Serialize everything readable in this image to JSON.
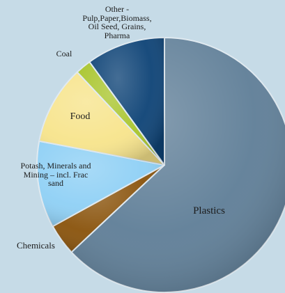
{
  "chart_data": {
    "type": "pie",
    "title": "",
    "slices": [
      {
        "label": "Plastics",
        "value": 63.0,
        "color": "#607f98"
      },
      {
        "label": "Chemicals",
        "value": 4.0,
        "color": "#8a540d"
      },
      {
        "label": "Potash, Minerals and Mining – incl. Frac sand",
        "value": 11.0,
        "color": "#8fd0f5"
      },
      {
        "label": "Food",
        "value": 10.0,
        "color": "#f7e48c"
      },
      {
        "label": "Coal",
        "value": 2.0,
        "color": "#a9c52d"
      },
      {
        "label": "Other - Pulp,Paper,Biomass, Oil Seed, Grains, Pharma",
        "value": 10.0,
        "color": "#0f4477"
      }
    ],
    "legend": "none",
    "start_angle_deg": 0,
    "direction": "clockwise"
  },
  "labels": {
    "plastics": "Plastics",
    "chemicals": "Chemicals",
    "potash": "Potash, Minerals and\nMining – incl. Frac\nsand",
    "food": "Food",
    "coal": "Coal",
    "other": "Other -\nPulp,Paper,Biomass,\nOil Seed, Grains,\nPharma"
  },
  "colors": {
    "background": "#c6dbe7",
    "slice_edge": "#dfe9f0"
  }
}
